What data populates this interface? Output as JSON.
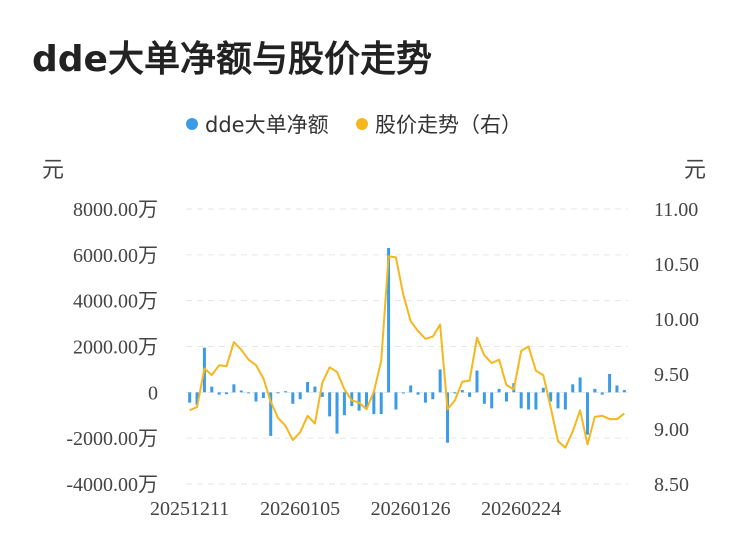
{
  "title": "dde大单净额与股价走势",
  "chart_data": {
    "type": "bar+line",
    "legend": [
      {
        "name": "dde大单净额",
        "color": "#3b9be6"
      },
      {
        "name": "股价走势（右）",
        "color": "#f5b71e"
      }
    ],
    "left_unit": "元",
    "right_unit": "元",
    "left_ticks": [
      "8000.00万",
      "6000.00万",
      "4000.00万",
      "2000.00万",
      "0",
      "-2000.00万",
      "-4000.00万"
    ],
    "right_ticks": [
      "11.00",
      "10.50",
      "10.00",
      "9.50",
      "9.00",
      "8.50"
    ],
    "ylim_left": [
      -4000,
      8000
    ],
    "ylim_right": [
      8.5,
      11.0
    ],
    "x_tick_labels": [
      "20251211",
      "20260105",
      "20260126",
      "20260224"
    ],
    "x_tick_index": [
      0,
      15,
      30,
      45
    ],
    "bar_values": [
      -450,
      -550,
      1950,
      250,
      -100,
      -80,
      350,
      80,
      -30,
      -400,
      -250,
      -1900,
      -10,
      50,
      -500,
      -300,
      450,
      250,
      -200,
      -1050,
      -1800,
      -1000,
      -600,
      -800,
      -650,
      -950,
      -950,
      6300,
      -750,
      -50,
      300,
      -100,
      -450,
      -300,
      1000,
      -2200,
      -50,
      100,
      -200,
      950,
      -500,
      -700,
      150,
      -400,
      400,
      -700,
      -750,
      -750,
      200,
      -400,
      -700,
      -750,
      350,
      650,
      -1850,
      150,
      -100,
      800,
      300,
      100
    ],
    "price_values": [
      9.17,
      9.2,
      9.55,
      9.49,
      9.58,
      9.57,
      9.79,
      9.72,
      9.63,
      9.58,
      9.46,
      9.25,
      9.1,
      9.03,
      8.9,
      8.97,
      9.12,
      9.05,
      9.42,
      9.56,
      9.52,
      9.36,
      9.26,
      9.24,
      9.18,
      9.34,
      9.62,
      10.57,
      10.56,
      10.22,
      9.98,
      9.89,
      9.82,
      9.84,
      9.95,
      9.18,
      9.26,
      9.43,
      9.44,
      9.83,
      9.67,
      9.6,
      9.63,
      9.4,
      9.36,
      9.71,
      9.75,
      9.53,
      9.49,
      9.2,
      8.89,
      8.83,
      8.98,
      9.17,
      8.86,
      9.11,
      9.12,
      9.09,
      9.09,
      9.14
    ]
  }
}
